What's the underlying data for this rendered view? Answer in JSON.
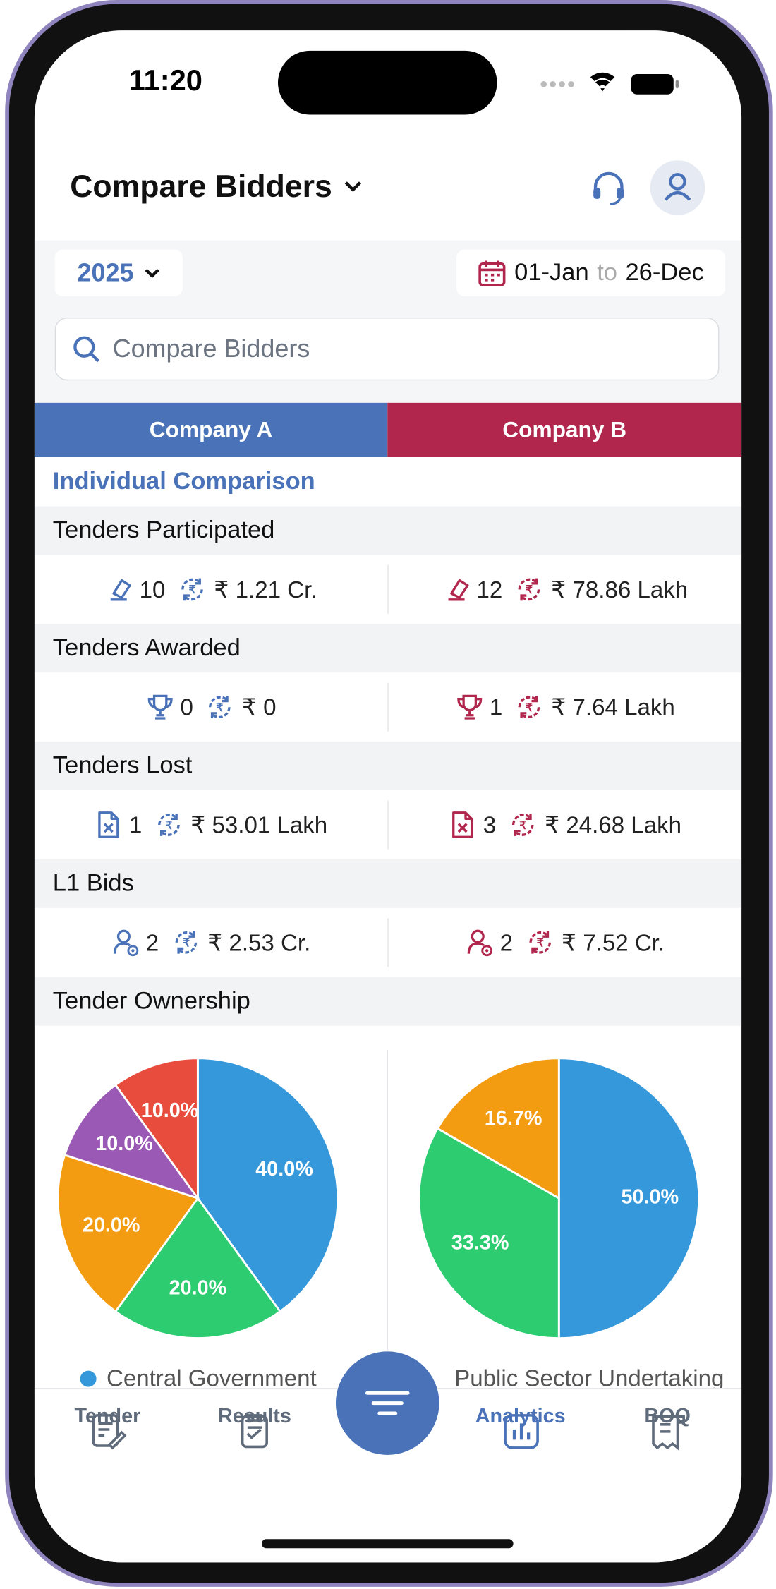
{
  "status_bar": {
    "time": "11:20"
  },
  "header": {
    "title": "Compare Bidders"
  },
  "filters": {
    "year": "2025",
    "date_from": "01-Jan",
    "date_sep": "to",
    "date_to": "26-Dec",
    "search_placeholder": "Compare Bidders"
  },
  "tabs": [
    "Company A",
    "Company B"
  ],
  "section_title": "Individual Comparison",
  "metrics": [
    {
      "label": "Tenders Participated",
      "icon": "gavel",
      "company_a": {
        "count": 10,
        "amount": "₹ 1.21 Cr."
      },
      "company_b": {
        "count": 12,
        "amount": "₹ 78.86 Lakh"
      }
    },
    {
      "label": "Tenders Awarded",
      "icon": "trophy",
      "company_a": {
        "count": 0,
        "amount": "₹ 0"
      },
      "company_b": {
        "count": 1,
        "amount": "₹ 7.64 Lakh"
      }
    },
    {
      "label": "Tenders Lost",
      "icon": "file-x",
      "company_a": {
        "count": 1,
        "amount": "₹ 53.01 Lakh"
      },
      "company_b": {
        "count": 3,
        "amount": "₹ 24.68 Lakh"
      }
    },
    {
      "label": "L1 Bids",
      "icon": "user",
      "company_a": {
        "count": 2,
        "amount": "₹ 2.53 Cr."
      },
      "company_b": {
        "count": 2,
        "amount": "₹ 7.52 Cr."
      }
    }
  ],
  "ownership": {
    "label": "Tender Ownership",
    "charts": [
      {
        "type": "pie",
        "values": [
          40,
          20,
          20,
          10,
          10
        ],
        "value_labels": [
          "40.0%",
          "20.0%",
          "20.0%",
          "10.0%",
          "10.0%"
        ],
        "colors": [
          "#3498db",
          "#2ecc71",
          "#f39c12",
          "#9b59b6",
          "#e74c3c"
        ]
      },
      {
        "type": "pie",
        "values": [
          50,
          33.3,
          16.7
        ],
        "value_labels": [
          "50.0%",
          "33.3%",
          "16.7%"
        ],
        "colors": [
          "#3498db",
          "#2ecc71",
          "#f39c12"
        ]
      }
    ],
    "legend": [
      {
        "label": "Central Government",
        "color": "#3498db"
      },
      {
        "label": "Public Sector Undertaking",
        "color": "#3498db"
      }
    ]
  },
  "nav": [
    "Tender",
    "Results",
    "Analytics",
    "BOQ"
  ],
  "nav_active": 2
}
